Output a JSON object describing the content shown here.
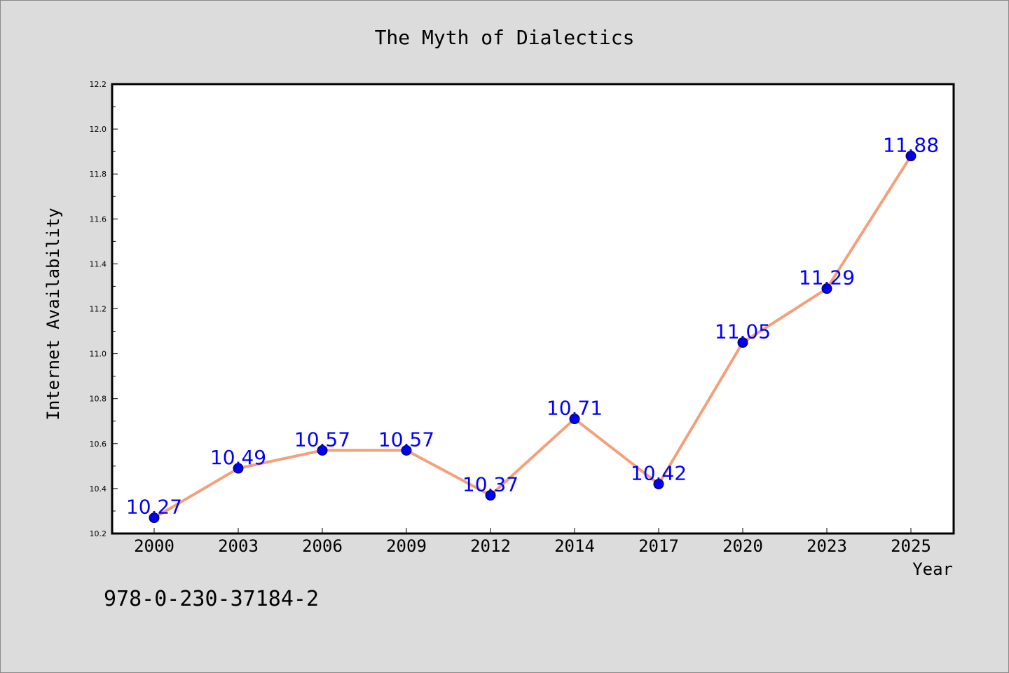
{
  "chart_data": {
    "type": "line",
    "title": "The Myth of Dialectics",
    "xlabel": "Year",
    "ylabel": "Internet Availability",
    "categories": [
      "2000",
      "2003",
      "2006",
      "2009",
      "2012",
      "2014",
      "2017",
      "2020",
      "2023",
      "2025"
    ],
    "series": [
      {
        "values": [
          10.27,
          10.49,
          10.57,
          10.57,
          10.37,
          10.71,
          10.42,
          11.05,
          11.29,
          11.88
        ],
        "line_color": "#f4a07a",
        "marker_color": "#0000ee",
        "label_color": "#0000ff"
      }
    ],
    "ylim": [
      10.2,
      12.2
    ],
    "yticks": [
      "10.2",
      "10.4",
      "10.6",
      "10.8",
      "11.0",
      "11.2",
      "11.4",
      "11.6",
      "11.8",
      "12.0",
      "12.2"
    ],
    "data_labels": [
      "10.27",
      "10.49",
      "10.57",
      "10.57",
      "10.37",
      "10.71",
      "10.42",
      "11.05",
      "11.29",
      "11.88"
    ],
    "grid": false,
    "legend": "none"
  },
  "annotation": "978-0-230-37184-2",
  "colors": {
    "background": "#dcdcdc",
    "plot_background": "#ffffff",
    "axis": "#000000"
  }
}
